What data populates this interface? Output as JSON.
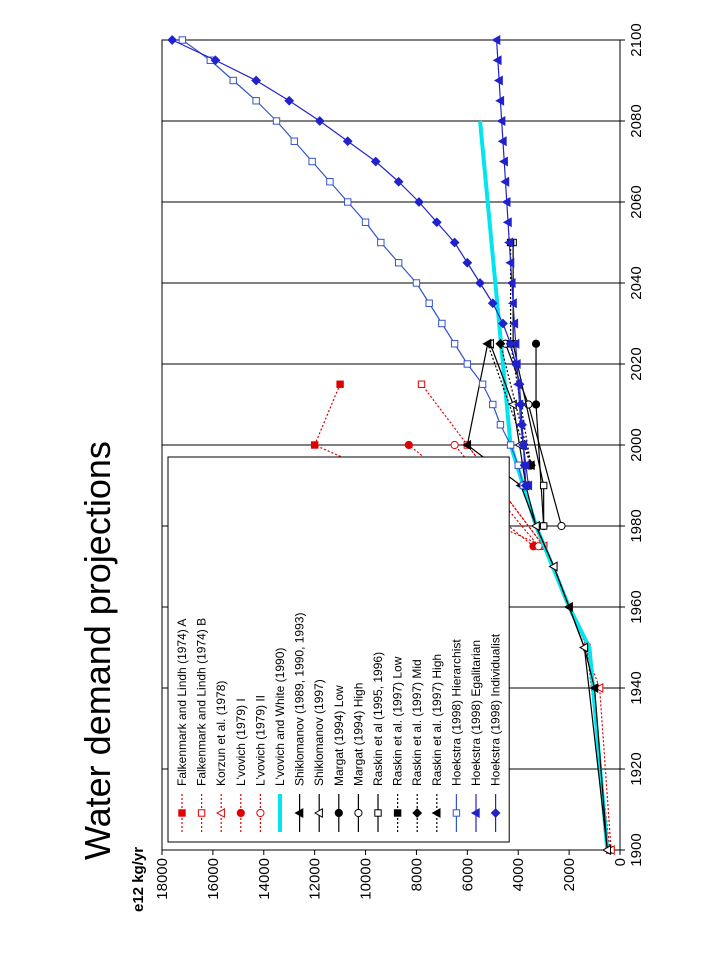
{
  "chart_data": {
    "type": "line",
    "title": "Water demand projections",
    "ylabel": "e12 kg/yr",
    "xlabel": "",
    "xlim": [
      1900,
      2100
    ],
    "ylim": [
      0,
      18000
    ],
    "x_ticks": [
      1900,
      1920,
      1940,
      1960,
      1980,
      2000,
      2020,
      2040,
      2060,
      2080,
      2100
    ],
    "y_ticks": [
      0,
      2000,
      4000,
      6000,
      8000,
      10000,
      12000,
      14000,
      16000,
      18000
    ],
    "grid": true,
    "legend_position": "top-left",
    "orientation": "rotated 90 degrees counter-clockwise",
    "series": [
      {
        "name": "Falkenmark and Lindh (1974) A",
        "color": "#e00000",
        "style": "dotted",
        "marker": "filled-square",
        "points": [
          [
            1900,
            400
          ],
          [
            1950,
            1300
          ],
          [
            1975,
            3000
          ],
          [
            2000,
            12000
          ],
          [
            2015,
            11000
          ]
        ]
      },
      {
        "name": "Falkenmark and Lindh (1974) B",
        "color": "#e00000",
        "style": "dotted",
        "marker": "open-square",
        "points": [
          [
            1900,
            400
          ],
          [
            1950,
            1300
          ],
          [
            1975,
            3000
          ],
          [
            2000,
            6000
          ],
          [
            2015,
            7800
          ]
        ]
      },
      {
        "name": "Korzun et al. (1978)",
        "color": "#e00000",
        "style": "dotted",
        "marker": "open-triangle",
        "points": [
          [
            1900,
            350
          ],
          [
            1940,
            800
          ],
          [
            1950,
            1400
          ],
          [
            1960,
            2000
          ],
          [
            1970,
            2600
          ],
          [
            1975,
            3000
          ],
          [
            2000,
            6000
          ]
        ]
      },
      {
        "name": "L'vovich (1979) I",
        "color": "#e00000",
        "style": "dotted",
        "marker": "filled-circle",
        "points": [
          [
            1975,
            3400
          ],
          [
            2000,
            8300
          ]
        ]
      },
      {
        "name": "L'vovich (1979) II",
        "color": "#e00000",
        "style": "dotted",
        "marker": "open-circle",
        "points": [
          [
            1975,
            3200
          ],
          [
            2000,
            6500
          ]
        ]
      },
      {
        "name": "L'vovich and White (1990)",
        "color": "#00e5ee",
        "style": "thick",
        "marker": "none",
        "points": [
          [
            1900,
            500
          ],
          [
            1950,
            1200
          ],
          [
            1960,
            2000
          ],
          [
            1980,
            3300
          ],
          [
            2000,
            4300
          ],
          [
            2080,
            5500
          ]
        ]
      },
      {
        "name": "Shiklomanov (1989, 1990,  1993)",
        "color": "#000000",
        "style": "solid",
        "marker": "filled-triangle",
        "points": [
          [
            1900,
            500
          ],
          [
            1940,
            1000
          ],
          [
            1950,
            1400
          ],
          [
            1960,
            2000
          ],
          [
            1970,
            2600
          ],
          [
            1980,
            3300
          ],
          [
            1990,
            3900
          ],
          [
            2000,
            6000
          ],
          [
            2025,
            5200
          ]
        ]
      },
      {
        "name": "Shiklomanov (1997)",
        "color": "#000000",
        "style": "solid",
        "marker": "open-triangle",
        "points": [
          [
            1900,
            500
          ],
          [
            1950,
            1400
          ],
          [
            1970,
            2600
          ],
          [
            1980,
            3300
          ],
          [
            1990,
            3700
          ],
          [
            2000,
            3950
          ],
          [
            2010,
            4200
          ],
          [
            2025,
            5100
          ]
        ]
      },
      {
        "name": "Margat (1994) Low",
        "color": "#000000",
        "style": "solid",
        "marker": "filled-circle",
        "points": [
          [
            1980,
            3000
          ],
          [
            2010,
            3300
          ],
          [
            2025,
            3300
          ]
        ]
      },
      {
        "name": "Margat (1994) High",
        "color": "#000000",
        "style": "solid",
        "marker": "open-circle",
        "points": [
          [
            1980,
            2300
          ],
          [
            2010,
            3600
          ],
          [
            2025,
            4500
          ]
        ]
      },
      {
        "name": "Raskin et al (1995, 1996)",
        "color": "#000000",
        "style": "solid",
        "marker": "open-square",
        "points": [
          [
            1980,
            3000
          ],
          [
            1990,
            3000
          ],
          [
            2025,
            4200
          ],
          [
            2050,
            4200
          ]
        ]
      },
      {
        "name": "Raskin et al. (1997) Low",
        "color": "#000000",
        "style": "dotted",
        "marker": "filled-square",
        "points": [
          [
            1995,
            3500
          ],
          [
            2025,
            4300
          ],
          [
            2050,
            4300
          ]
        ]
      },
      {
        "name": "Raskin et al. (1997) Mid",
        "color": "#000000",
        "style": "dotted",
        "marker": "filled-diamond",
        "points": [
          [
            1995,
            3500
          ],
          [
            2025,
            4700
          ]
        ]
      },
      {
        "name": "Raskin et al. (1997) High",
        "color": "#000000",
        "style": "dotted",
        "marker": "filled-triangle",
        "points": [
          [
            1995,
            3500
          ],
          [
            2025,
            5200
          ]
        ]
      },
      {
        "name": "Hoekstra (1998) Hierarchist",
        "color": "#3355cc",
        "style": "solid",
        "marker": "open-square",
        "points": [
          [
            1990,
            3800
          ],
          [
            1995,
            4000
          ],
          [
            2000,
            4300
          ],
          [
            2005,
            4700
          ],
          [
            2010,
            5000
          ],
          [
            2015,
            5400
          ],
          [
            2020,
            6000
          ],
          [
            2025,
            6500
          ],
          [
            2030,
            7000
          ],
          [
            2035,
            7500
          ],
          [
            2040,
            8000
          ],
          [
            2045,
            8700
          ],
          [
            2050,
            9400
          ],
          [
            2055,
            10000
          ],
          [
            2060,
            10700
          ],
          [
            2065,
            11400
          ],
          [
            2070,
            12100
          ],
          [
            2075,
            12800
          ],
          [
            2080,
            13500
          ],
          [
            2085,
            14300
          ],
          [
            2090,
            15200
          ],
          [
            2095,
            16100
          ],
          [
            2100,
            17200
          ]
        ]
      },
      {
        "name": "Hoekstra (1998) Egalitarian",
        "color": "#2222cc",
        "style": "solid",
        "marker": "filled-triangle",
        "points": [
          [
            1990,
            3600
          ],
          [
            1995,
            3700
          ],
          [
            2000,
            3800
          ],
          [
            2005,
            3900
          ],
          [
            2010,
            3950
          ],
          [
            2015,
            4000
          ],
          [
            2020,
            4050
          ],
          [
            2025,
            4100
          ],
          [
            2030,
            4150
          ],
          [
            2035,
            4200
          ],
          [
            2040,
            4250
          ],
          [
            2045,
            4300
          ],
          [
            2050,
            4350
          ],
          [
            2055,
            4400
          ],
          [
            2060,
            4450
          ],
          [
            2065,
            4500
          ],
          [
            2070,
            4550
          ],
          [
            2075,
            4600
          ],
          [
            2080,
            4650
          ],
          [
            2085,
            4700
          ],
          [
            2090,
            4750
          ],
          [
            2095,
            4800
          ],
          [
            2100,
            4850
          ]
        ]
      },
      {
        "name": "Hoekstra (1998) Individualist",
        "color": "#2222cc",
        "style": "solid",
        "marker": "filled-diamond",
        "points": [
          [
            1990,
            3700
          ],
          [
            1995,
            3750
          ],
          [
            2000,
            3800
          ],
          [
            2005,
            3850
          ],
          [
            2010,
            3900
          ],
          [
            2015,
            3950
          ],
          [
            2020,
            4100
          ],
          [
            2025,
            4300
          ],
          [
            2030,
            4600
          ],
          [
            2035,
            5000
          ],
          [
            2040,
            5500
          ],
          [
            2045,
            6000
          ],
          [
            2050,
            6500
          ],
          [
            2055,
            7200
          ],
          [
            2060,
            7900
          ],
          [
            2065,
            8700
          ],
          [
            2070,
            9600
          ],
          [
            2075,
            10700
          ],
          [
            2080,
            11800
          ],
          [
            2085,
            13000
          ],
          [
            2090,
            14300
          ],
          [
            2095,
            15900
          ],
          [
            2100,
            17600
          ]
        ]
      }
    ]
  }
}
